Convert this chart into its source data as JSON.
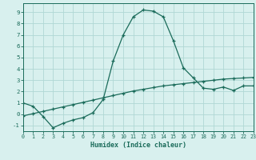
{
  "xlabel": "Humidex (Indice chaleur)",
  "background_color": "#d8f0ee",
  "grid_color": "#b0d8d4",
  "line_color": "#1a6b5a",
  "curve1_x": [
    0,
    1,
    2,
    3,
    4,
    5,
    6,
    7,
    8,
    9,
    10,
    11,
    12,
    13,
    14,
    15,
    16,
    17,
    18,
    19,
    20,
    21,
    22,
    23
  ],
  "curve1_y": [
    1.0,
    0.7,
    -0.2,
    -1.2,
    -0.8,
    -0.5,
    -0.3,
    0.15,
    1.3,
    4.7,
    7.0,
    8.6,
    9.2,
    9.1,
    8.6,
    6.5,
    4.1,
    3.2,
    2.3,
    2.2,
    2.4,
    2.1,
    2.5,
    2.5
  ],
  "curve2_x": [
    0,
    1,
    2,
    3,
    4,
    5,
    6,
    7,
    8,
    9,
    10,
    11,
    12,
    13,
    14,
    15,
    16,
    17,
    18,
    19,
    20,
    21,
    22,
    23
  ],
  "curve2_y": [
    -0.15,
    0.05,
    0.25,
    0.45,
    0.65,
    0.85,
    1.05,
    1.25,
    1.45,
    1.65,
    1.85,
    2.05,
    2.2,
    2.35,
    2.5,
    2.6,
    2.7,
    2.8,
    2.9,
    3.0,
    3.1,
    3.15,
    3.2,
    3.25
  ],
  "ylim": [
    -1.5,
    9.8
  ],
  "xlim": [
    0,
    23
  ],
  "yticks": [
    -1,
    0,
    1,
    2,
    3,
    4,
    5,
    6,
    7,
    8,
    9
  ],
  "xticks": [
    0,
    1,
    2,
    3,
    4,
    5,
    6,
    7,
    8,
    9,
    10,
    11,
    12,
    13,
    14,
    15,
    16,
    17,
    18,
    19,
    20,
    21,
    22,
    23
  ]
}
